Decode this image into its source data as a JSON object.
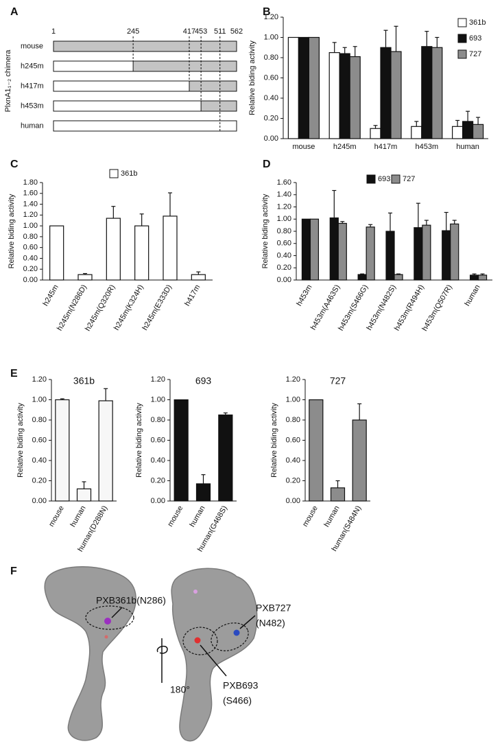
{
  "panel_labels": [
    "A",
    "B",
    "C",
    "D",
    "E",
    "F"
  ],
  "panel_a": {
    "axis_label": "PlxnA1₁₋₂ chimera",
    "positions": [
      1,
      245,
      417,
      453,
      511,
      562
    ],
    "rows": [
      "mouse",
      "h245m",
      "h417m",
      "h453m",
      "human"
    ]
  },
  "chart_data": [
    {
      "type": "bar",
      "y_label": "Relative biding activity",
      "legend": "right",
      "categories": [
        "mouse",
        "h245m",
        "h417m",
        "h453m",
        "human"
      ],
      "series": [
        {
          "name": "361b",
          "color": "#ffffff",
          "values": [
            1.0,
            0.85,
            0.1,
            0.12,
            0.12
          ],
          "errors": [
            null,
            0.1,
            0.03,
            0.05,
            0.06
          ]
        },
        {
          "name": "693",
          "color": "#111111",
          "values": [
            1.0,
            0.84,
            0.9,
            0.91,
            0.17
          ],
          "errors": [
            null,
            0.06,
            0.17,
            0.15,
            0.1
          ]
        },
        {
          "name": "727",
          "color": "#8c8c8c",
          "values": [
            1.0,
            0.81,
            0.86,
            0.9,
            0.14
          ],
          "errors": [
            null,
            0.1,
            0.25,
            0.1,
            0.07
          ]
        }
      ],
      "ylim": [
        0,
        1.2
      ],
      "yticks": [
        {
          "value": 0,
          "label": "0.00"
        },
        {
          "value": 0.2,
          "label": "0.20"
        },
        {
          "value": 0.4,
          "label": "0.40"
        },
        {
          "value": 0.6,
          "label": "0.60"
        },
        {
          "value": 0.8,
          "label": "0.80"
        },
        {
          "value": 1.0,
          "label": "1.00"
        },
        {
          "value": 1.2,
          "label": "1.20"
        }
      ]
    },
    {
      "type": "bar",
      "y_label": "Relative biding activity",
      "legend": "top",
      "categories": [
        "h245m",
        "h245m(N286D)",
        "h245m(Q320R)",
        "h245m(K324H)",
        "h245m(E333D)",
        "h417m"
      ],
      "series": [
        {
          "name": "361b",
          "color": "#ffffff",
          "values": [
            1.0,
            0.1,
            1.14,
            1.0,
            1.18,
            0.1
          ],
          "errors": [
            null,
            0.02,
            0.22,
            0.22,
            0.43,
            0.05
          ]
        }
      ],
      "ylim": [
        0,
        1.8
      ],
      "yticks": [
        {
          "value": 0,
          "label": "0.00"
        },
        {
          "value": 0.2,
          "label": "0.20"
        },
        {
          "value": 0.4,
          "label": "0.40"
        },
        {
          "value": 0.6,
          "label": "0.60"
        },
        {
          "value": 0.8,
          "label": "0.80"
        },
        {
          "value": 1.0,
          "label": "1.00"
        },
        {
          "value": 1.2,
          "label": "1.20"
        },
        {
          "value": 1.4,
          "label": "1.40"
        },
        {
          "value": 1.6,
          "label": "1.60"
        },
        {
          "value": 1.8,
          "label": "1.80"
        }
      ]
    },
    {
      "type": "bar",
      "y_label": "Relative biding activity",
      "legend": "top",
      "categories": [
        "h453m",
        "h453m(A463S)",
        "h453m(S466G)",
        "h453m(N482S)",
        "h453m(R494H)",
        "h453m(Q507R)",
        "human"
      ],
      "series": [
        {
          "name": "693",
          "color": "#111111",
          "values": [
            1.0,
            1.02,
            0.09,
            0.8,
            0.86,
            0.81,
            0.08
          ],
          "errors": [
            null,
            0.45,
            0.01,
            0.3,
            0.4,
            0.3,
            0.02
          ]
        },
        {
          "name": "727",
          "color": "#8c8c8c",
          "values": [
            1.0,
            0.93,
            0.87,
            0.09,
            0.9,
            0.92,
            0.08
          ],
          "errors": [
            null,
            0.03,
            0.04,
            0.01,
            0.08,
            0.06,
            0.02
          ]
        }
      ],
      "ylim": [
        0,
        1.6
      ],
      "yticks": [
        {
          "value": 0,
          "label": "0.00"
        },
        {
          "value": 0.2,
          "label": "0.20"
        },
        {
          "value": 0.4,
          "label": "0.40"
        },
        {
          "value": 0.6,
          "label": "0.60"
        },
        {
          "value": 0.8,
          "label": "0.80"
        },
        {
          "value": 1.0,
          "label": "1.00"
        },
        {
          "value": 1.2,
          "label": "1.20"
        },
        {
          "value": 1.4,
          "label": "1.40"
        },
        {
          "value": 1.6,
          "label": "1.60"
        }
      ]
    },
    {
      "type": "bar",
      "title": "361b",
      "y_label": "Relative biding activity",
      "color": "#f7f7f7",
      "categories": [
        "mouse",
        "human",
        "human(D288N)"
      ],
      "values": [
        1.0,
        0.12,
        0.99
      ],
      "errors": [
        0.01,
        0.07,
        0.12
      ],
      "ylim": [
        0,
        1.2
      ],
      "yticks": [
        {
          "value": 0,
          "label": "0.00"
        },
        {
          "value": 0.2,
          "label": "0.20"
        },
        {
          "value": 0.4,
          "label": "0.40"
        },
        {
          "value": 0.6,
          "label": "0.60"
        },
        {
          "value": 0.8,
          "label": "0.80"
        },
        {
          "value": 1.0,
          "label": "1.00"
        },
        {
          "value": 1.2,
          "label": "1.20"
        }
      ]
    },
    {
      "type": "bar",
      "title": "693",
      "y_label": "Relative biding activity",
      "color": "#111111",
      "categories": [
        "mouse",
        "human",
        "human(G468S)"
      ],
      "values": [
        1.0,
        0.17,
        0.85
      ],
      "errors": [
        null,
        0.09,
        0.02
      ],
      "ylim": [
        0,
        1.2
      ],
      "yticks": [
        {
          "value": 0,
          "label": "0.00"
        },
        {
          "value": 0.2,
          "label": "0.20"
        },
        {
          "value": 0.4,
          "label": "0.40"
        },
        {
          "value": 0.6,
          "label": "0.60"
        },
        {
          "value": 0.8,
          "label": "0.80"
        },
        {
          "value": 1.0,
          "label": "1.00"
        },
        {
          "value": 1.2,
          "label": "1.20"
        }
      ]
    },
    {
      "type": "bar",
      "title": "727",
      "y_label": "Relative biding activity",
      "color": "#8c8c8c",
      "categories": [
        "mouse",
        "human",
        "human(S484N)"
      ],
      "values": [
        1.0,
        0.13,
        0.8
      ],
      "errors": [
        null,
        0.07,
        0.16
      ],
      "ylim": [
        0,
        1.2
      ],
      "yticks": [
        {
          "value": 0,
          "label": "0.00"
        },
        {
          "value": 0.2,
          "label": "0.20"
        },
        {
          "value": 0.4,
          "label": "0.40"
        },
        {
          "value": 0.6,
          "label": "0.60"
        },
        {
          "value": 0.8,
          "label": "0.80"
        },
        {
          "value": 1.0,
          "label": "1.00"
        },
        {
          "value": 1.2,
          "label": "1.20"
        }
      ]
    }
  ],
  "panel_f": {
    "annotations": [
      "PXB361b(N286)",
      "PXB727",
      "(N482)",
      "PXB693",
      "(S466)"
    ],
    "rotation": "180°"
  }
}
